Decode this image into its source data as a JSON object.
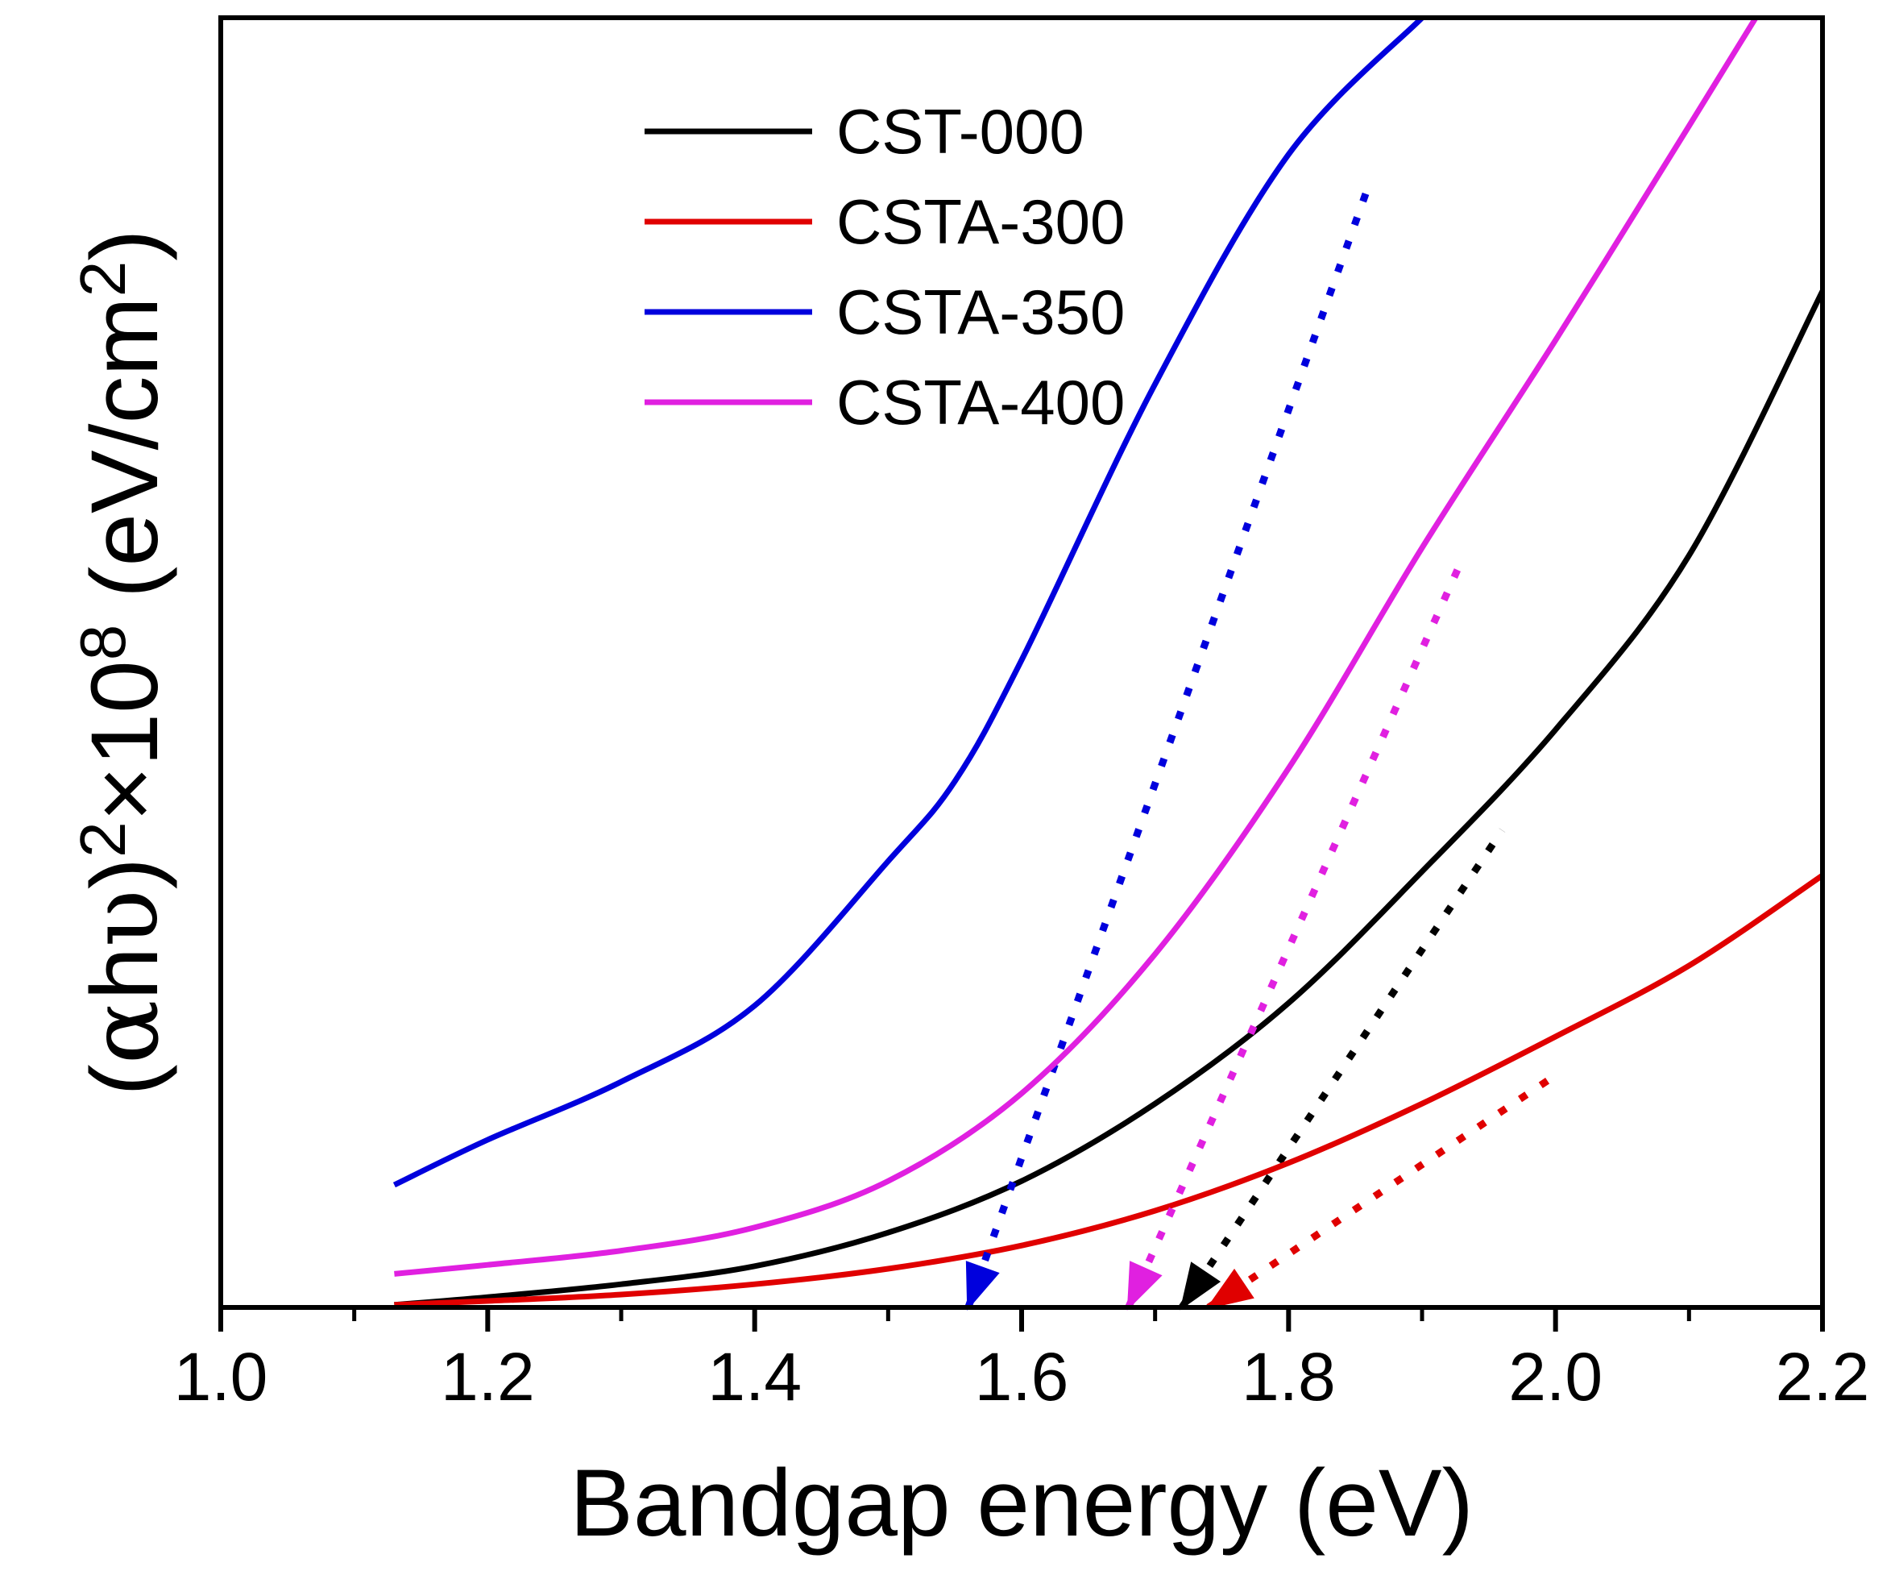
{
  "chart_data": {
    "type": "line",
    "title": "",
    "xlabel": "Bandgap energy (eV)",
    "ylabel": {
      "prefix": "(",
      "alpha": "α",
      "h": "h",
      "nu": "υ",
      "close": ")",
      "exp1": "2",
      "times": "×10",
      "exp2": "8",
      "unit": " (eV/cm",
      "exp3": "2",
      "tail": ")",
      "text": "(αhυ)2×108 (eV/cm2)"
    },
    "xlim": [
      1.0,
      2.2
    ],
    "ylim": [
      0,
      100
    ],
    "yticks_shown": false,
    "grid": false,
    "legend_position": "top-center",
    "xtick_labels": [
      "1.0",
      "1.2",
      "1.4",
      "1.6",
      "1.8",
      "2.0",
      "2.2"
    ],
    "xticks": [
      1.0,
      1.2,
      1.4,
      1.6,
      1.8,
      2.0,
      2.2
    ],
    "series": [
      {
        "name": "CST-000",
        "color": "#000000",
        "x": [
          1.13,
          1.2,
          1.3,
          1.4,
          1.5,
          1.6,
          1.7,
          1.8,
          1.9,
          2.0,
          2.1,
          2.2
        ],
        "y": [
          0.2,
          0.8,
          1.8,
          3.2,
          5.8,
          9.8,
          15.8,
          23.6,
          33.8,
          44.8,
          58.3,
          78.8
        ],
        "fit": {
          "x": [
            1.72,
            1.96
          ],
          "y": [
            0,
            37
          ]
        },
        "bandgap_eV": 1.72
      },
      {
        "name": "CSTA-300",
        "color": "#e00000",
        "x": [
          1.13,
          1.2,
          1.3,
          1.4,
          1.5,
          1.6,
          1.7,
          1.8,
          1.9,
          2.0,
          2.1,
          2.2
        ],
        "y": [
          0.2,
          0.5,
          1.0,
          1.8,
          3.0,
          4.8,
          7.5,
          11.2,
          15.8,
          21.0,
          26.5,
          33.5
        ],
        "fit": {
          "x": [
            1.74,
            2.0
          ],
          "y": [
            0,
            18
          ]
        },
        "bandgap_eV": 1.74
      },
      {
        "name": "CSTA-350",
        "color": "#0000dd",
        "x": [
          1.13,
          1.2,
          1.3,
          1.4,
          1.5,
          1.55,
          1.6,
          1.7,
          1.8,
          1.9
        ],
        "y": [
          9.5,
          13.0,
          17.5,
          23.4,
          34.6,
          40.8,
          50.2,
          71.6,
          89.4,
          100.0
        ],
        "fit": {
          "x": [
            1.56,
            1.86
          ],
          "y": [
            0,
            87
          ]
        },
        "bandgap_eV": 1.56
      },
      {
        "name": "CSTA-400",
        "color": "#e020e0",
        "x": [
          1.13,
          1.2,
          1.3,
          1.4,
          1.5,
          1.6,
          1.7,
          1.8,
          1.9,
          2.0,
          2.1,
          2.15
        ],
        "y": [
          2.6,
          3.3,
          4.4,
          6.2,
          9.8,
          16.6,
          27.4,
          41.8,
          58.9,
          75.0,
          91.6,
          100.0
        ],
        "fit": {
          "x": [
            1.68,
            1.93
          ],
          "y": [
            0,
            58
          ]
        },
        "bandgap_eV": 1.68
      }
    ]
  }
}
